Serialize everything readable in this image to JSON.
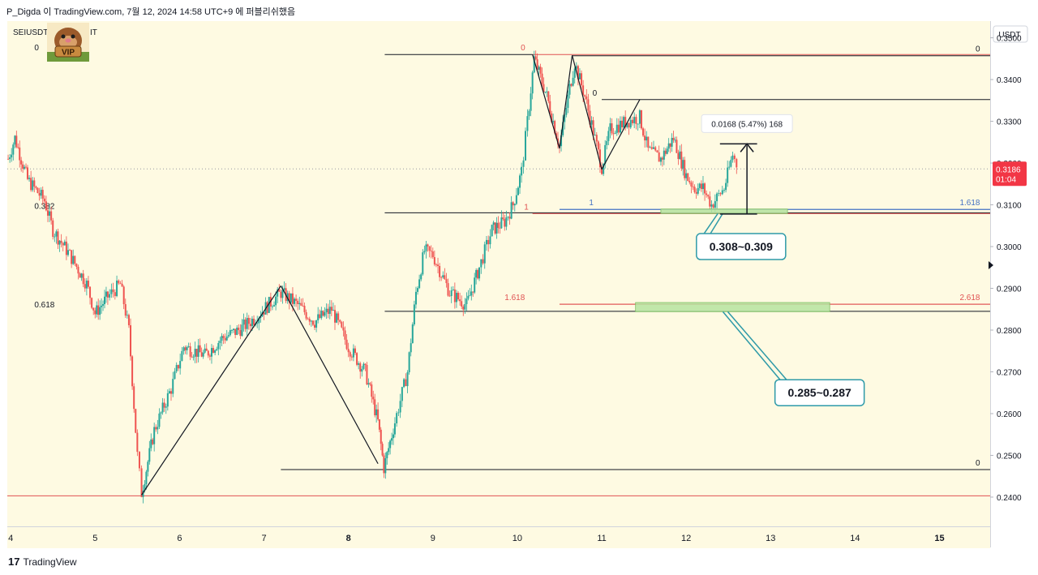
{
  "header": {
    "caption": "P_Digda 이 TradingView.com, 7월 12, 2024 14:58 UTC+9 에 퍼블리쉬했음"
  },
  "symbol": {
    "prefix": "SEIUSDT",
    "suffix": "IT",
    "badge_text": "VIP"
  },
  "footer": {
    "brand": "TradingView",
    "logo_mark": "17"
  },
  "colors": {
    "background": "#fefae2",
    "up": "#26a69a",
    "down": "#ef5350",
    "fib_red": "#e05252",
    "fib_blue": "#4472c4",
    "zone_fill": "#b6e3a0",
    "callout_border": "#2e9aa8"
  },
  "chart_data": {
    "type": "candlestick",
    "title": "SEIUSDT",
    "currency": "USDT",
    "ylim": [
      0.233,
      0.354
    ],
    "xlim": [
      3.96,
      15.6
    ],
    "y_ticks": [
      0.35,
      0.34,
      0.33,
      0.32,
      0.31,
      0.3,
      0.29,
      0.28,
      0.27,
      0.26,
      0.25,
      0.24
    ],
    "y_tick_labels": [
      "0.3500",
      "0.3400",
      "0.3300",
      "0.3200",
      "0.3100",
      "0.3000",
      "0.2900",
      "0.2800",
      "0.2700",
      "0.2600",
      "0.2500",
      "0.2400"
    ],
    "x_ticks": [
      4,
      5,
      6,
      7,
      8,
      9,
      10,
      11,
      12,
      13,
      14,
      15
    ],
    "x_tick_labels": [
      "4",
      "5",
      "6",
      "7",
      "8",
      "9",
      "10",
      "11",
      "12",
      "13",
      "14",
      "15"
    ],
    "bold_x_ticks": [
      "8",
      "15"
    ],
    "current_price": {
      "value": 0.3186,
      "label": "0.3186",
      "countdown": "01:04"
    },
    "price_path": [
      [
        3.97,
        0.321
      ],
      [
        4.05,
        0.326
      ],
      [
        4.2,
        0.316
      ],
      [
        4.4,
        0.311
      ],
      [
        4.5,
        0.304
      ],
      [
        4.7,
        0.298
      ],
      [
        4.9,
        0.291
      ],
      [
        5.0,
        0.284
      ],
      [
        5.15,
        0.288
      ],
      [
        5.3,
        0.291
      ],
      [
        5.4,
        0.28
      ],
      [
        5.5,
        0.25
      ],
      [
        5.55,
        0.241
      ],
      [
        5.7,
        0.256
      ],
      [
        5.9,
        0.266
      ],
      [
        6.05,
        0.276
      ],
      [
        6.3,
        0.274
      ],
      [
        6.5,
        0.278
      ],
      [
        6.7,
        0.28
      ],
      [
        6.9,
        0.283
      ],
      [
        7.1,
        0.287
      ],
      [
        7.2,
        0.289
      ],
      [
        7.4,
        0.286
      ],
      [
        7.6,
        0.282
      ],
      [
        7.8,
        0.285
      ],
      [
        8.0,
        0.276
      ],
      [
        8.2,
        0.27
      ],
      [
        8.35,
        0.258
      ],
      [
        8.42,
        0.247
      ],
      [
        8.55,
        0.258
      ],
      [
        8.7,
        0.27
      ],
      [
        8.8,
        0.289
      ],
      [
        8.9,
        0.299
      ],
      [
        9.0,
        0.298
      ],
      [
        9.2,
        0.289
      ],
      [
        9.4,
        0.286
      ],
      [
        9.55,
        0.295
      ],
      [
        9.7,
        0.304
      ],
      [
        9.85,
        0.306
      ],
      [
        9.95,
        0.31
      ],
      [
        10.05,
        0.318
      ],
      [
        10.12,
        0.33
      ],
      [
        10.2,
        0.345
      ],
      [
        10.35,
        0.336
      ],
      [
        10.5,
        0.324
      ],
      [
        10.62,
        0.338
      ],
      [
        10.68,
        0.344
      ],
      [
        10.8,
        0.336
      ],
      [
        11.0,
        0.319
      ],
      [
        11.1,
        0.328
      ],
      [
        11.3,
        0.33
      ],
      [
        11.45,
        0.331
      ],
      [
        11.55,
        0.323
      ],
      [
        11.7,
        0.321
      ],
      [
        11.85,
        0.326
      ],
      [
        12.0,
        0.317
      ],
      [
        12.1,
        0.314
      ],
      [
        12.2,
        0.314
      ],
      [
        12.3,
        0.31
      ],
      [
        12.45,
        0.314
      ],
      [
        12.55,
        0.322
      ],
      [
        12.62,
        0.3186
      ]
    ],
    "trend_lines": [
      {
        "from": [
          5.55,
          0.2405
        ],
        "to": [
          7.2,
          0.2906
        ]
      },
      {
        "from": [
          7.2,
          0.2906
        ],
        "to": [
          8.35,
          0.248
        ]
      },
      {
        "from": [
          10.18,
          0.346
        ],
        "to": [
          10.5,
          0.3235
        ]
      },
      {
        "from": [
          10.5,
          0.3235
        ],
        "to": [
          10.65,
          0.3458
        ]
      },
      {
        "from": [
          10.65,
          0.3458
        ],
        "to": [
          11.0,
          0.3185
        ]
      },
      {
        "from": [
          11.0,
          0.3185
        ],
        "to": [
          11.45,
          0.3352
        ]
      }
    ],
    "fib_levels": [
      {
        "label": "0",
        "price": 0.346,
        "x0": 8.43,
        "x1": 10.18,
        "color": "#131722",
        "label_x": 4.28,
        "label_side": "start"
      },
      {
        "label": "0.382",
        "price": 0.3081,
        "x0": 8.43,
        "x1": 15.6,
        "color": "#131722",
        "label_x": 4.28,
        "label_side": "start"
      },
      {
        "label": "0.618",
        "price": 0.2845,
        "x0": 8.43,
        "x1": 15.6,
        "color": "#131722",
        "label_x": 4.28,
        "label_side": "start"
      },
      {
        "label": "0",
        "price": 0.2466,
        "x0": 7.2,
        "x1": 15.6,
        "color": "#131722",
        "label_x": 15.48,
        "label_side": "end"
      },
      {
        "label": "0",
        "price": 0.346,
        "x0": 10.18,
        "x1": 15.6,
        "color": "#e05252",
        "label_x": 10.04,
        "label_side": "start"
      },
      {
        "label": "1",
        "price": 0.3079,
        "x0": 10.18,
        "x1": 15.6,
        "color": "#e05252",
        "label_x": 10.08,
        "label_side": "start"
      },
      {
        "label": "1.618",
        "price": 0.2862,
        "x0": 10.5,
        "x1": 15.6,
        "color": "#e05252",
        "label_x": 9.85,
        "label_side": "start"
      },
      {
        "label": "2.618",
        "price": 0.2862,
        "x0": 10.5,
        "x1": 15.6,
        "color": "#e05252",
        "label_x": 15.48,
        "label_side": "end"
      },
      {
        "label": "0",
        "price": 0.3457,
        "x0": 10.65,
        "x1": 15.6,
        "color": "#131722",
        "label_x": 15.48,
        "label_side": "end"
      },
      {
        "label": "0",
        "price": 0.3352,
        "x0": 11.0,
        "x1": 15.6,
        "color": "#131722",
        "label_x": 10.89,
        "label_side": "start"
      },
      {
        "label": "1",
        "price": 0.3089,
        "x0": 10.5,
        "x1": 15.6,
        "color": "#4472c4",
        "label_x": 10.85,
        "label_side": "start"
      },
      {
        "label": "1.618",
        "price": 0.3089,
        "x0": 10.5,
        "x1": 15.6,
        "color": "#4472c4",
        "label_x": 15.48,
        "label_side": "end"
      },
      {
        "label": "",
        "price": 0.2403,
        "x0": 3.96,
        "x1": 15.6,
        "color": "#e05252",
        "label_x": 0,
        "label_side": "none"
      }
    ],
    "zones": [
      {
        "label": "0.308~0.309",
        "price_top": 0.309,
        "price_bottom": 0.3079,
        "x0": 11.7,
        "x1": 13.2,
        "callout_x": 12.65,
        "callout_price": 0.3
      },
      {
        "label": "0.285~0.287",
        "price_top": 0.2866,
        "price_bottom": 0.2844,
        "x0": 11.4,
        "x1": 13.7,
        "callout_x": 13.58,
        "callout_price": 0.265
      }
    ],
    "measure": {
      "label": "0.0168 (5.47%) 168",
      "from_price": 0.3078,
      "to_price": 0.3246,
      "x_start": 12.4,
      "x_end": 12.84,
      "x_arrow": 12.72
    }
  }
}
